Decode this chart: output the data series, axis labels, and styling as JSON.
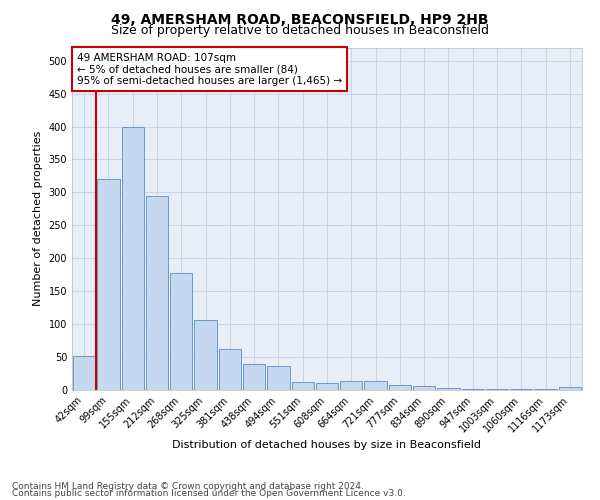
{
  "title": "49, AMERSHAM ROAD, BEACONSFIELD, HP9 2HB",
  "subtitle": "Size of property relative to detached houses in Beaconsfield",
  "xlabel": "Distribution of detached houses by size in Beaconsfield",
  "ylabel": "Number of detached properties",
  "footer1": "Contains HM Land Registry data © Crown copyright and database right 2024.",
  "footer2": "Contains public sector information licensed under the Open Government Licence v3.0.",
  "annotation_line1": "49 AMERSHAM ROAD: 107sqm",
  "annotation_line2": "← 5% of detached houses are smaller (84)",
  "annotation_line3": "95% of semi-detached houses are larger (1,465) →",
  "categories": [
    "42sqm",
    "99sqm",
    "155sqm",
    "212sqm",
    "268sqm",
    "325sqm",
    "381sqm",
    "438sqm",
    "494sqm",
    "551sqm",
    "608sqm",
    "664sqm",
    "721sqm",
    "777sqm",
    "834sqm",
    "890sqm",
    "947sqm",
    "1003sqm",
    "1060sqm",
    "1116sqm",
    "1173sqm"
  ],
  "values": [
    52,
    320,
    400,
    295,
    178,
    107,
    63,
    40,
    36,
    12,
    10,
    13,
    13,
    8,
    6,
    3,
    2,
    1,
    1,
    1,
    5
  ],
  "bar_color": "#c5d8f0",
  "bar_edge_color": "#5a8fc0",
  "marker_color": "#cc0000",
  "ylim": [
    0,
    520
  ],
  "yticks": [
    0,
    50,
    100,
    150,
    200,
    250,
    300,
    350,
    400,
    450,
    500
  ],
  "background_color": "#ffffff",
  "grid_color": "#c8d4e8",
  "title_fontsize": 10,
  "subtitle_fontsize": 9,
  "axis_label_fontsize": 8,
  "tick_fontsize": 7,
  "annotation_fontsize": 7.5,
  "footer_fontsize": 6.5
}
